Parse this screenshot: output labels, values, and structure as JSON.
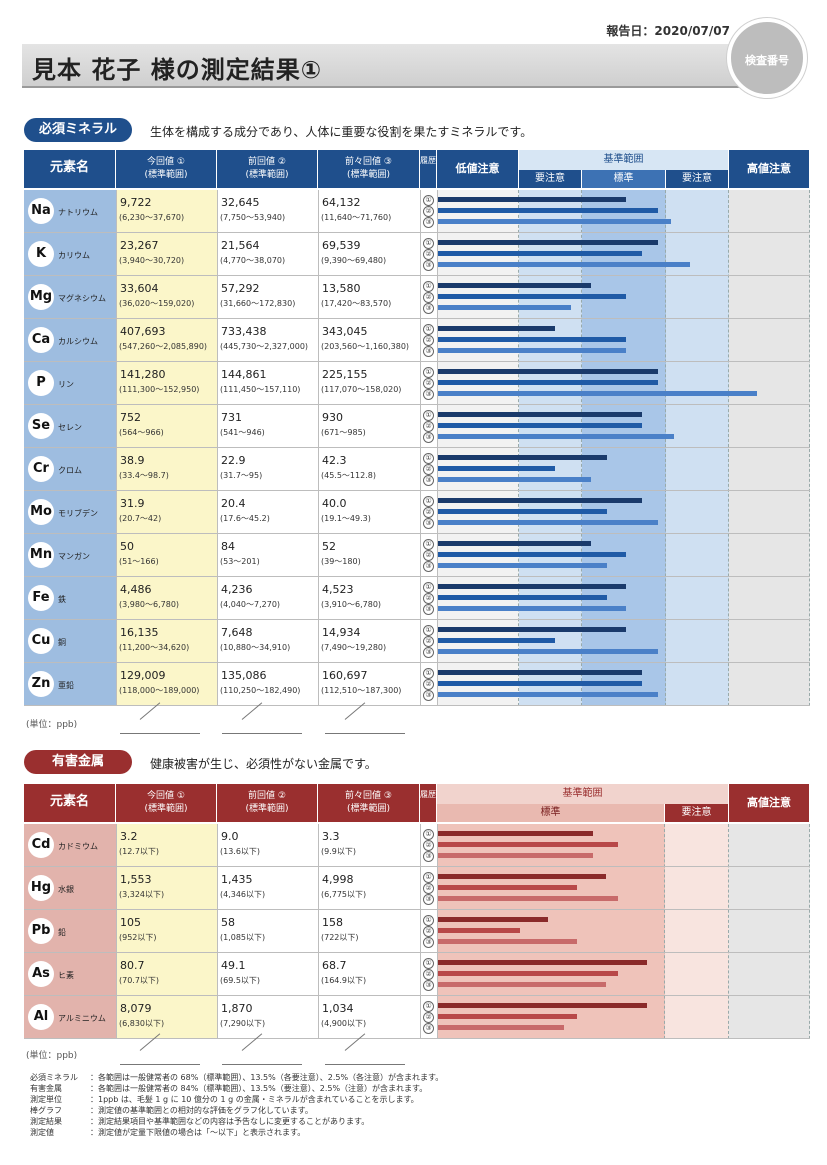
{
  "header": {
    "report_date": "報告日：2020/07/07",
    "title": "見本 花子 様の測定結果①",
    "id_label": "検査番号"
  },
  "sections": [
    {
      "key": "essential",
      "label": "必須ミネラル",
      "description": "生体を構成する成分であり、人体に重要な役割を果たすミネラルです。",
      "col_headers": {
        "element": "元素名",
        "current": "今回値 ①",
        "current_sub": "(標準範囲)",
        "previous": "前回値 ②",
        "previous_sub": "(標準範囲)",
        "before_prev": "前々回値 ③",
        "before_prev_sub": "(標準範囲)",
        "history": "履歴",
        "low": "低値注意",
        "range": "基準範囲",
        "range_sub": [
          "要注意",
          "標準",
          "要注意"
        ],
        "high": "高値注意"
      },
      "colors": {
        "header": "#1f4f8c",
        "element_cell": "#9ebde0",
        "current_col": "#fbf6c9",
        "bar1": "#1a3a6b",
        "bar2": "#1f5aa6",
        "bar3": "#4a80c8",
        "pill": "#1f4f8c"
      },
      "rows": [
        {
          "symbol": "Na",
          "name": "ナトリウム",
          "current": "9,722",
          "current_range": "(6,230〜37,670)",
          "previous": "32,645",
          "previous_range": "(7,750〜53,940)",
          "before_prev": "64,132",
          "before_prev_range": "(11,640〜71,760)",
          "levels": [
            0.59,
            0.69,
            0.73
          ]
        },
        {
          "symbol": "K",
          "name": "カリウム",
          "current": "23,267",
          "current_range": "(3,940〜30,720)",
          "previous": "21,564",
          "previous_range": "(4,770〜38,070)",
          "before_prev": "69,539",
          "before_prev_range": "(9,390〜69,480)",
          "levels": [
            0.69,
            0.64,
            0.79
          ]
        },
        {
          "symbol": "Mg",
          "name": "マグネシウム",
          "current": "33,604",
          "current_range": "(36,020〜159,020)",
          "previous": "57,292",
          "previous_range": "(31,660〜172,830)",
          "before_prev": "13,580",
          "before_prev_range": "(17,420〜83,570)",
          "levels": [
            0.48,
            0.59,
            0.42
          ]
        },
        {
          "symbol": "Ca",
          "name": "カルシウム",
          "current": "407,693",
          "current_range": "(547,260〜2,085,890)",
          "previous": "733,438",
          "previous_range": "(445,730〜2,327,000)",
          "before_prev": "343,045",
          "before_prev_range": "(203,560〜1,160,380)",
          "levels": [
            0.37,
            0.59,
            0.59
          ]
        },
        {
          "symbol": "P",
          "name": "リン",
          "current": "141,280",
          "current_range": "(111,300〜152,950)",
          "previous": "144,861",
          "previous_range": "(111,450〜157,110)",
          "before_prev": "225,155",
          "before_prev_range": "(117,070〜158,020)",
          "levels": [
            0.69,
            0.69,
            1.0
          ]
        },
        {
          "symbol": "Se",
          "name": "セレン",
          "current": "752",
          "current_range": "(564〜966)",
          "previous": "731",
          "previous_range": "(541〜946)",
          "before_prev": "930",
          "before_prev_range": "(671〜985)",
          "levels": [
            0.64,
            0.64,
            0.74
          ]
        },
        {
          "symbol": "Cr",
          "name": "クロム",
          "current": "38.9",
          "current_range": "(33.4〜98.7)",
          "previous": "22.9",
          "previous_range": "(31.7〜95)",
          "before_prev": "42.3",
          "before_prev_range": "(45.5〜112.8)",
          "levels": [
            0.53,
            0.37,
            0.48
          ]
        },
        {
          "symbol": "Mo",
          "name": "モリブデン",
          "current": "31.9",
          "current_range": "(20.7〜42)",
          "previous": "20.4",
          "previous_range": "(17.6〜45.2)",
          "before_prev": "40.0",
          "before_prev_range": "(19.1〜49.3)",
          "levels": [
            0.64,
            0.53,
            0.69
          ]
        },
        {
          "symbol": "Mn",
          "name": "マンガン",
          "current": "50",
          "current_range": "(51〜166)",
          "previous": "84",
          "previous_range": "(53〜201)",
          "before_prev": "52",
          "before_prev_range": "(39〜180)",
          "levels": [
            0.48,
            0.59,
            0.53
          ]
        },
        {
          "symbol": "Fe",
          "name": "鉄",
          "current": "4,486",
          "current_range": "(3,980〜6,780)",
          "previous": "4,236",
          "previous_range": "(4,040〜7,270)",
          "before_prev": "4,523",
          "before_prev_range": "(3,910〜6,780)",
          "levels": [
            0.59,
            0.53,
            0.59
          ]
        },
        {
          "symbol": "Cu",
          "name": "銅",
          "current": "16,135",
          "current_range": "(11,200〜34,620)",
          "previous": "7,648",
          "previous_range": "(10,880〜34,910)",
          "before_prev": "14,934",
          "before_prev_range": "(7,490〜19,280)",
          "levels": [
            0.59,
            0.37,
            0.69
          ]
        },
        {
          "symbol": "Zn",
          "name": "亜鉛",
          "current": "129,009",
          "current_range": "(118,000〜189,000)",
          "previous": "135,086",
          "previous_range": "(110,250〜182,490)",
          "before_prev": "160,697",
          "before_prev_range": "(112,510〜187,300)",
          "levels": [
            0.64,
            0.64,
            0.69
          ]
        }
      ],
      "unit": "(単位：ppb)"
    },
    {
      "key": "toxic",
      "label": "有害金属",
      "description": "健康被害が生じ、必須性がない金属です。",
      "col_headers": {
        "element": "元素名",
        "current": "今回値 ①",
        "current_sub": "(標準範囲)",
        "previous": "前回値 ②",
        "previous_sub": "(標準範囲)",
        "before_prev": "前々回値 ③",
        "before_prev_sub": "(標準範囲)",
        "history": "履歴",
        "range": "基準範囲",
        "range_sub": [
          "標準",
          "要注意"
        ],
        "high": "高値注意"
      },
      "colors": {
        "header": "#9a2f2f",
        "element_cell": "#e2b3ac",
        "current_col": "#fbf6c9",
        "bar1": "#8a2a2a",
        "bar2": "#b84848",
        "bar3": "#c86a6a",
        "pill": "#9a2f2f"
      },
      "rows": [
        {
          "symbol": "Cd",
          "name": "カドミウム",
          "current": "3.2",
          "current_range": "(12.7以下)",
          "previous": "9.0",
          "previous_range": "(13.6以下)",
          "before_prev": "3.3",
          "before_prev_range": "(9.9以下)",
          "levels": [
            0.49,
            0.57,
            0.49
          ]
        },
        {
          "symbol": "Hg",
          "name": "水銀",
          "current": "1,553",
          "current_range": "(3,324以下)",
          "previous": "1,435",
          "previous_range": "(4,346以下)",
          "before_prev": "4,998",
          "before_prev_range": "(6,775以下)",
          "levels": [
            0.53,
            0.44,
            0.57
          ]
        },
        {
          "symbol": "Pb",
          "name": "鉛",
          "current": "105",
          "current_range": "(952以下)",
          "previous": "58",
          "previous_range": "(1,085以下)",
          "before_prev": "158",
          "before_prev_range": "(722以下)",
          "levels": [
            0.35,
            0.26,
            0.44
          ]
        },
        {
          "symbol": "As",
          "name": "ヒ素",
          "current": "80.7",
          "current_range": "(70.7以下)",
          "previous": "49.1",
          "previous_range": "(69.5以下)",
          "before_prev": "68.7",
          "before_prev_range": "(164.9以下)",
          "levels": [
            0.66,
            0.57,
            0.53
          ]
        },
        {
          "symbol": "Al",
          "name": "アルミニウム",
          "current": "8,079",
          "current_range": "(6,830以下)",
          "previous": "1,870",
          "previous_range": "(7,290以下)",
          "before_prev": "1,034",
          "before_prev_range": "(4,900以下)",
          "levels": [
            0.66,
            0.44,
            0.4
          ]
        }
      ],
      "unit": "(単位：ppb)"
    }
  ],
  "footer": [
    {
      "term": "必須ミネラル",
      "text": "：各範囲は一般健常者の 68%（標準範囲）、13.5%（各要注意）、2.5%（各注意）が含まれます。"
    },
    {
      "term": "有害金属",
      "text": "：各範囲は一般健常者の 84%（標準範囲）、13.5%（要注意）、2.5%（注意）が含まれます。"
    },
    {
      "term": "測定単位",
      "text": "：1ppb は、毛髪 1 g に 10 億分の 1 g の金属・ミネラルが含まれていることを示します。"
    },
    {
      "term": "棒グラフ",
      "text": "：測定値の基準範囲との相対的な評価をグラフ化しています。"
    },
    {
      "term": "測定結果",
      "text": "：測定結果項目や基準範囲などの内容は予告なしに変更することがあります。"
    },
    {
      "term": "測定値",
      "text": "：測定値が定量下限値の場合は「〜以下」と表示されます。"
    }
  ],
  "history_marks": [
    "①",
    "②",
    "③"
  ]
}
